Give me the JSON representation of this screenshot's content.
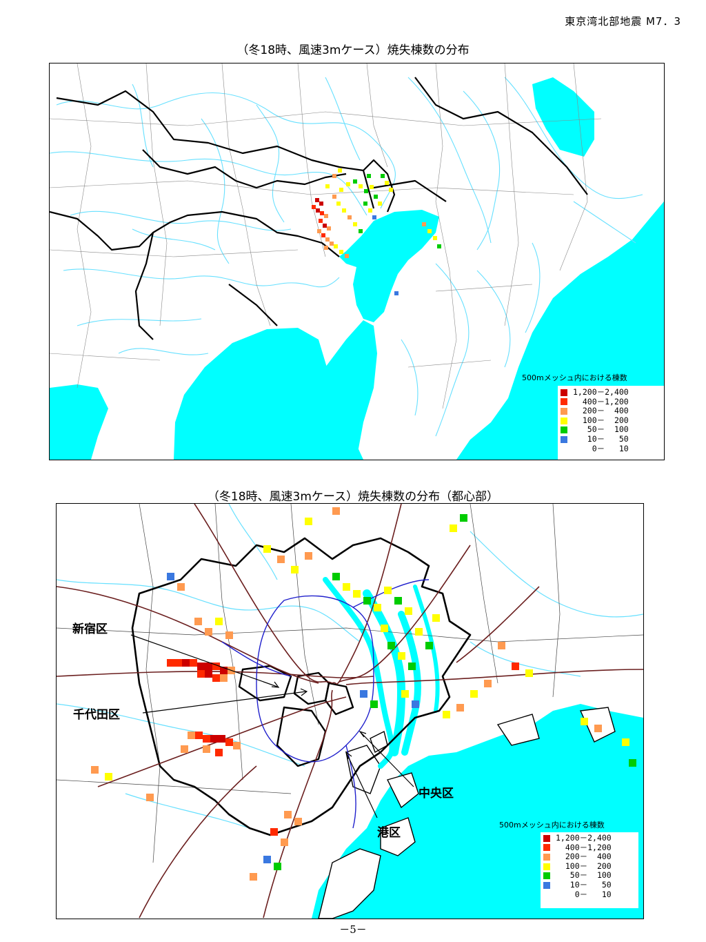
{
  "header": {
    "event_label": "東京湾北部地震 M7．3"
  },
  "map1": {
    "title": "（冬18時、風速3mケース）焼失棟数の分布",
    "legend_title": "500mメッシュ内における棟数"
  },
  "map2": {
    "title": "（冬18時、風速3mケース）焼失棟数の分布（都心部）",
    "legend_title": "500mメッシュ内における棟数",
    "labels": {
      "shinjuku": "新宿区",
      "chiyoda": "千代田区",
      "chuo": "中央区",
      "minato": "港区"
    }
  },
  "legend": [
    {
      "range": "1,200－2,400",
      "color": "#cc0000"
    },
    {
      "range": "  400－1,200",
      "color": "#ff2a00"
    },
    {
      "range": "  200－  400",
      "color": "#ff9a50"
    },
    {
      "range": "  100－  200",
      "color": "#ffff00"
    },
    {
      "range": "   50－  100",
      "color": "#00cc00"
    },
    {
      "range": "   10－   50",
      "color": "#3a78e0"
    },
    {
      "range": "    0－   10",
      "color": "#ffffff"
    }
  ],
  "colors": {
    "sea": "#00ffff",
    "river": "#66e0ff",
    "border": "#000000",
    "road": "#6b1f1f",
    "rail": "#2020cc"
  },
  "page": {
    "number": "－5－"
  }
}
